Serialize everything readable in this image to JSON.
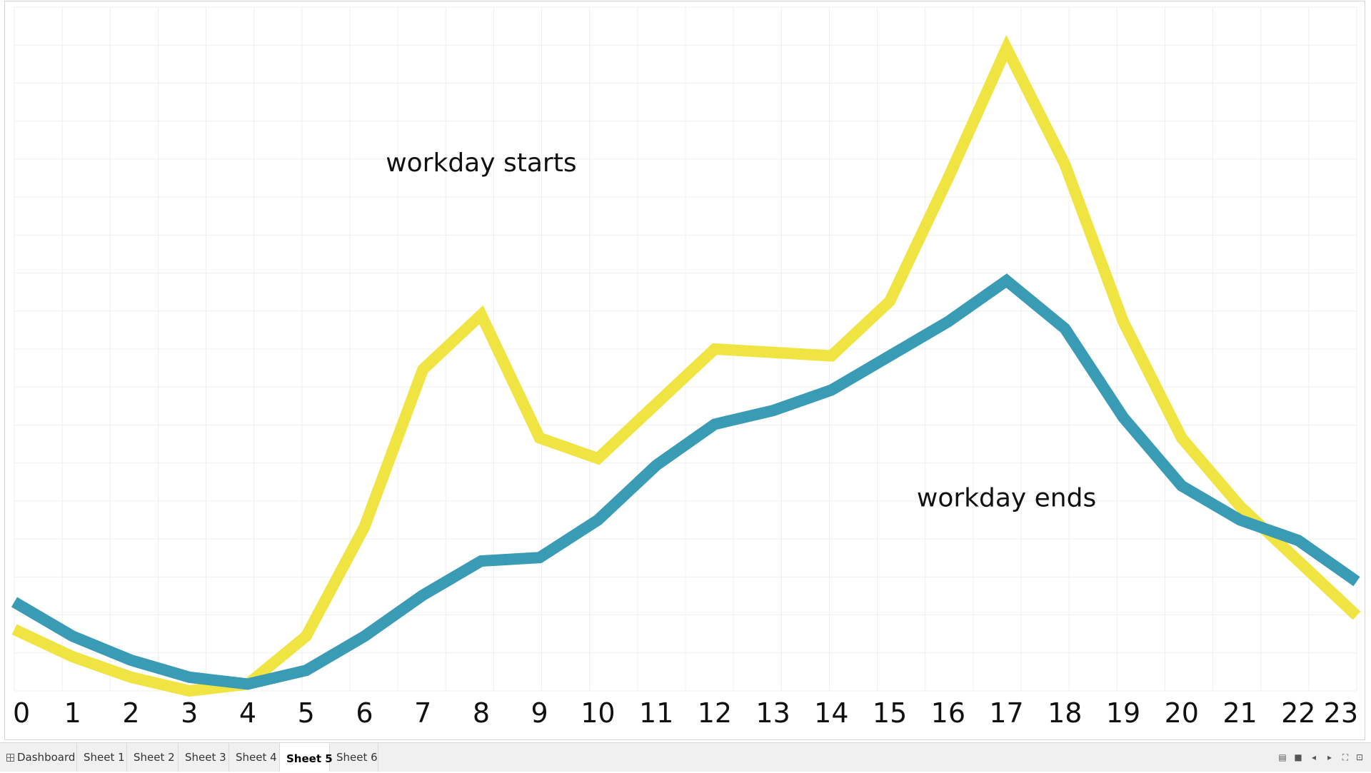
{
  "chart_data": {
    "type": "line",
    "x": [
      0,
      1,
      2,
      3,
      4,
      5,
      6,
      7,
      8,
      9,
      10,
      11,
      12,
      13,
      14,
      15,
      16,
      17,
      18,
      19,
      20,
      21,
      22,
      23
    ],
    "ylim": [
      0,
      100
    ],
    "grid": true,
    "series": [
      {
        "color": "#f0e442",
        "values": [
          9,
          5,
          2,
          0,
          1,
          8,
          24,
          47,
          55,
          37,
          34,
          42,
          50,
          49.5,
          49,
          57,
          75,
          94,
          77,
          54,
          37,
          27,
          19,
          11
        ]
      },
      {
        "color": "#3a9bb5",
        "values": [
          13,
          8,
          4.5,
          2,
          1,
          3,
          8,
          14,
          19,
          19.5,
          25,
          33,
          39,
          41,
          44,
          49,
          54,
          60,
          53,
          40,
          30,
          25,
          22,
          16
        ]
      }
    ],
    "x_tick_labels": [
      "0",
      "1",
      "2",
      "3",
      "4",
      "5",
      "6",
      "7",
      "8",
      "9",
      "10",
      "11",
      "12",
      "13",
      "14",
      "15",
      "16",
      "17",
      "18",
      "19",
      "20",
      "21",
      "22",
      "23"
    ],
    "annotations": [
      {
        "text": "workday starts",
        "x": 8,
        "y": 76
      },
      {
        "text": "workday ends",
        "x": 17,
        "y": 27
      }
    ]
  },
  "tabs": [
    {
      "label": "Dashboard",
      "active": false,
      "icon": "dashboard-icon"
    },
    {
      "label": "Sheet 1",
      "active": false
    },
    {
      "label": "Sheet 2",
      "active": false
    },
    {
      "label": "Sheet 3",
      "active": false
    },
    {
      "label": "Sheet 4",
      "active": false
    },
    {
      "label": "Sheet 5",
      "active": true
    },
    {
      "label": "Sheet 6",
      "active": false
    }
  ],
  "controls": [
    "show-sheets-icon",
    "filmstrip-icon",
    "previous-icon",
    "next-icon",
    "fit-screen-icon",
    "presentation-icon"
  ]
}
